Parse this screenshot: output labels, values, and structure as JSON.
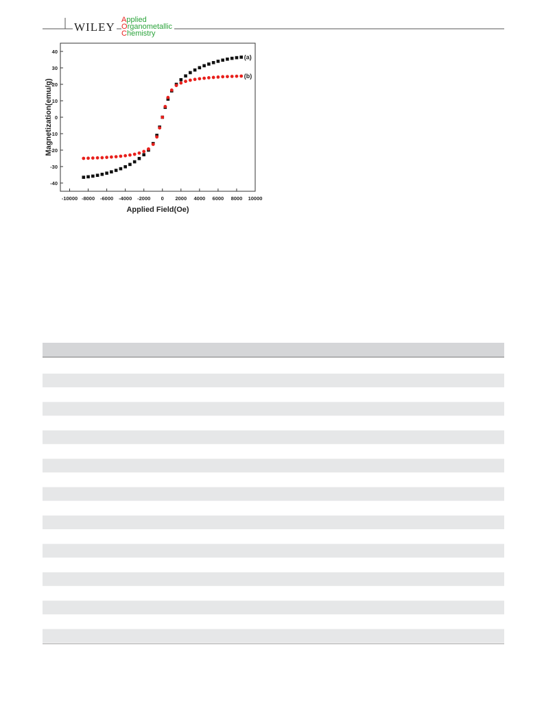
{
  "header": {
    "publisher": "WILEY",
    "journal": [
      "Applied",
      "Organometallic",
      "Chemistry"
    ]
  },
  "chart_data": {
    "type": "scatter",
    "xlabel": "Applied Field(Oe)",
    "ylabel": "Magnetization(emu/g)",
    "xlim": [
      -11000,
      10000
    ],
    "ylim": [
      -45,
      45
    ],
    "xticks": [
      -10000,
      -8000,
      -6000,
      -4000,
      -2000,
      0,
      2000,
      4000,
      6000,
      8000,
      10000
    ],
    "yticks": [
      -40,
      -30,
      -20,
      -10,
      0,
      10,
      20,
      30,
      40
    ],
    "x": [
      -8500,
      -8000,
      -7500,
      -7000,
      -6500,
      -6000,
      -5500,
      -5000,
      -4500,
      -4000,
      -3500,
      -3000,
      -2500,
      -2000,
      -1500,
      -1000,
      -600,
      -300,
      0,
      300,
      600,
      1000,
      1500,
      2000,
      2500,
      3000,
      3500,
      4000,
      4500,
      5000,
      5500,
      6000,
      6500,
      7000,
      7500,
      8000,
      8500
    ],
    "series": [
      {
        "name": "(a)",
        "color": "#111111",
        "marker": "square",
        "values": [
          -36.5,
          -36.2,
          -35.8,
          -35.3,
          -34.7,
          -34,
          -33.2,
          -32.3,
          -31.3,
          -30.1,
          -28.7,
          -27.1,
          -25.1,
          -22.8,
          -20,
          -16,
          -11,
          -6,
          0,
          6,
          11,
          16,
          20,
          22.8,
          25.1,
          27.1,
          28.7,
          30.1,
          31.3,
          32.3,
          33.2,
          34,
          34.7,
          35.3,
          35.8,
          36.2,
          36.5
        ]
      },
      {
        "name": "(b)",
        "color": "#e8201c",
        "marker": "circle",
        "values": [
          -25,
          -24.9,
          -24.8,
          -24.7,
          -24.6,
          -24.4,
          -24.2,
          -24,
          -23.7,
          -23.4,
          -23,
          -22.5,
          -21.8,
          -20.8,
          -19.3,
          -16.5,
          -12,
          -6.5,
          0,
          6.5,
          12,
          16.5,
          19.3,
          20.8,
          21.8,
          22.5,
          23,
          23.4,
          23.7,
          24,
          24.2,
          24.4,
          24.6,
          24.7,
          24.8,
          24.9,
          25
        ]
      }
    ]
  }
}
